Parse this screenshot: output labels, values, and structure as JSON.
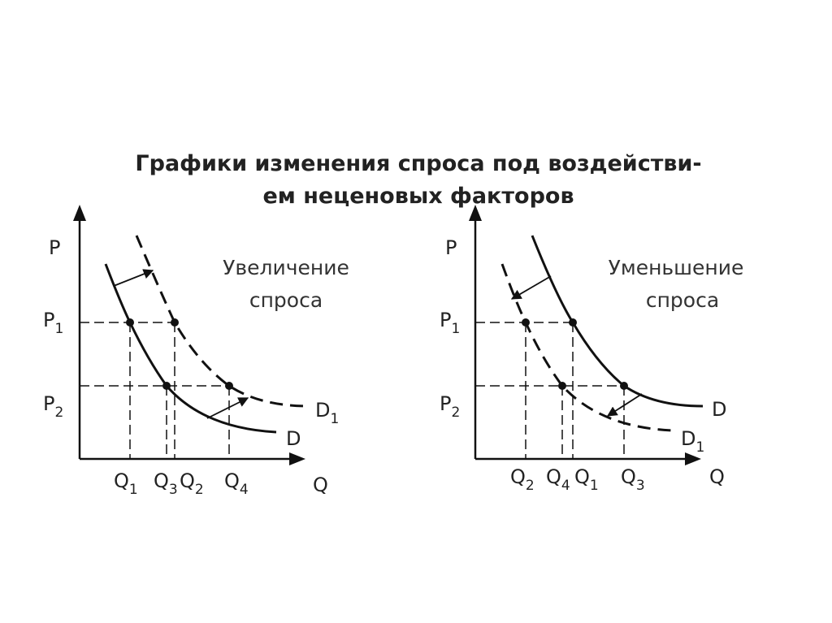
{
  "title": {
    "lines": [
      "Графики изменения спроса под воздействи-",
      "ем неценовых факторов"
    ]
  },
  "panels": [
    {
      "caption": [
        "Увеличение",
        "спроса"
      ],
      "axis_labels": {
        "y": "P",
        "x": "Q"
      },
      "price_labels": [
        {
          "main": "P",
          "sub": "1"
        },
        {
          "main": "P",
          "sub": "2"
        }
      ],
      "quantity_labels": [
        {
          "main": "Q",
          "sub": "1"
        },
        {
          "main": "Q",
          "sub": "3"
        },
        {
          "main": "Q",
          "sub": "2"
        },
        {
          "main": "Q",
          "sub": "4"
        }
      ],
      "curve_labels": [
        {
          "main": "D",
          "sub": "1"
        },
        {
          "main": "D"
        }
      ]
    },
    {
      "caption": [
        "Уменьшение",
        "спроса"
      ],
      "axis_labels": {
        "y": "P",
        "x": "Q"
      },
      "price_labels": [
        {
          "main": "P",
          "sub": "1"
        },
        {
          "main": "P",
          "sub": "2"
        }
      ],
      "quantity_labels": [
        {
          "main": "Q",
          "sub": "2"
        },
        {
          "main": "Q",
          "sub": "4"
        },
        {
          "main": "Q",
          "sub": "1"
        },
        {
          "main": "Q",
          "sub": "3"
        }
      ],
      "curve_labels": [
        {
          "main": "D"
        },
        {
          "main": "D",
          "sub": "1"
        }
      ]
    }
  ]
}
